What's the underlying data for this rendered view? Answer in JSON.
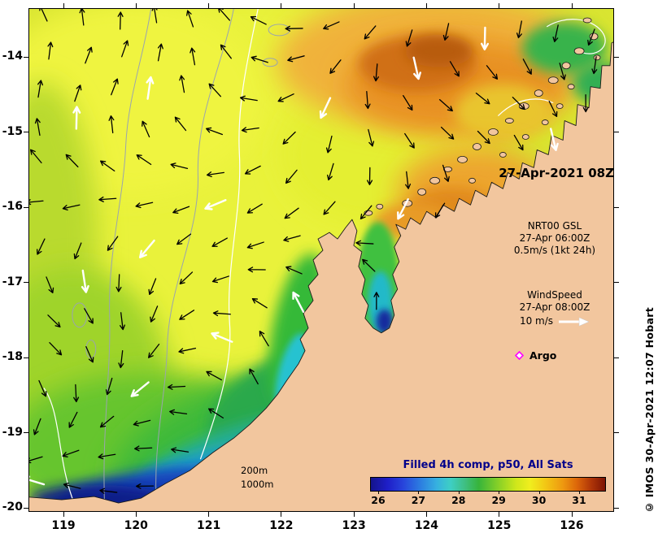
{
  "frame": {
    "date_label": "27-Apr-2021 08Z",
    "credit": "© IMOS 30-Apr-2021 12:07 Hobart"
  },
  "legend": {
    "gsl": {
      "name": "NRT00 GSL",
      "time": "27-Apr 06:00Z",
      "scale": "0.5m/s (1kt 24h)"
    },
    "wind": {
      "name": "WindSpeed",
      "time": "27-Apr 08:00Z",
      "speed": "10 m/s"
    },
    "argo": {
      "label": "Argo"
    },
    "depth": {
      "d200": "200m",
      "d1000": "1000m"
    }
  },
  "axes": {
    "lat": [
      "-14",
      "-15",
      "-16",
      "-17",
      "-18",
      "-19",
      "-20"
    ],
    "lon": [
      "119",
      "120",
      "121",
      "122",
      "123",
      "124",
      "125",
      "126"
    ]
  },
  "colorbar": {
    "title": "Filled 4h comp, p50, All Sats",
    "ticks": [
      "26",
      "27",
      "28",
      "29",
      "30",
      "31"
    ],
    "gradient": [
      [
        0,
        "#14148c"
      ],
      [
        0.07,
        "#1e1ec8"
      ],
      [
        0.14,
        "#2846dc"
      ],
      [
        0.21,
        "#2c7ce0"
      ],
      [
        0.28,
        "#36b0e0"
      ],
      [
        0.34,
        "#3ecfc4"
      ],
      [
        0.4,
        "#3fbf83"
      ],
      [
        0.46,
        "#37b43b"
      ],
      [
        0.54,
        "#84cf28"
      ],
      [
        0.62,
        "#cfe71b"
      ],
      [
        0.68,
        "#f0ee1e"
      ],
      [
        0.75,
        "#f2c414"
      ],
      [
        0.82,
        "#ee9810"
      ],
      [
        0.88,
        "#dc660a"
      ],
      [
        0.94,
        "#b03608"
      ],
      [
        1,
        "#7c1404"
      ]
    ]
  },
  "colors": {
    "land": "#f2c69e",
    "ocean_base": "#d9e531",
    "coast": "#1a1a1a",
    "contour_gray": "#9aa4ae",
    "contour_white": "#ffffff",
    "argo": "#ff00ff",
    "wind_arrow": "#ffffff",
    "colorbar_title": "#00008b"
  }
}
